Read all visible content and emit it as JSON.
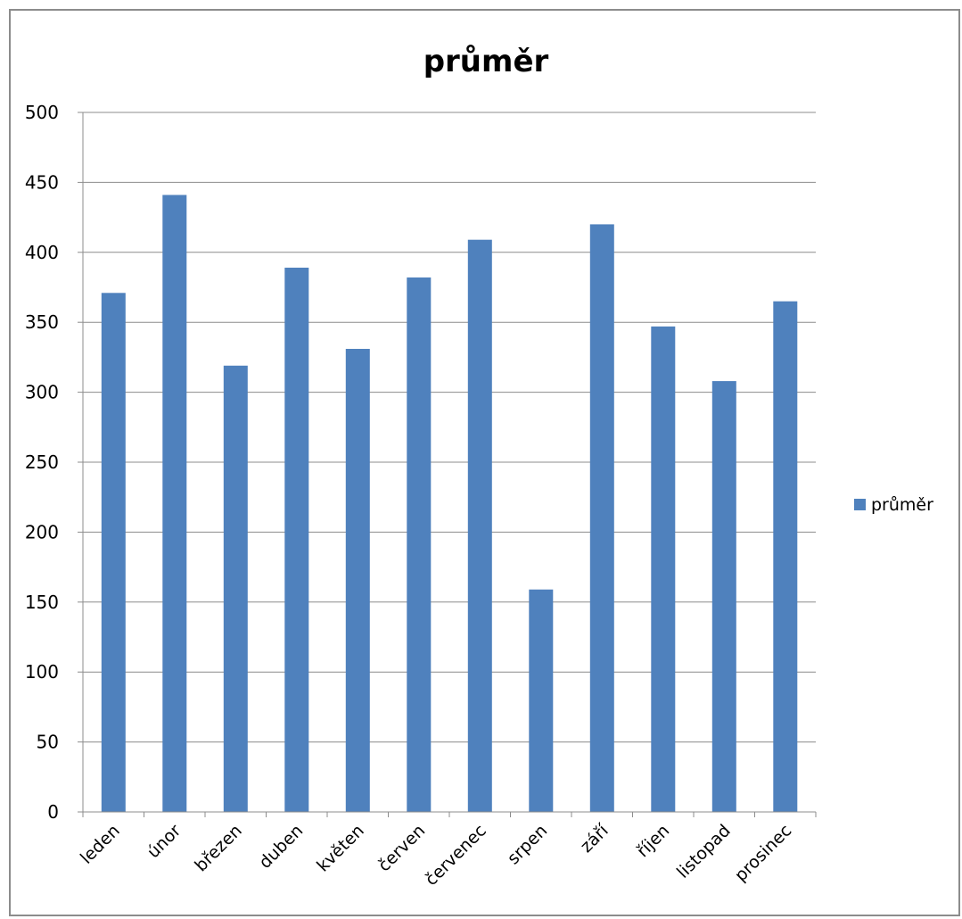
{
  "chart_data": {
    "type": "bar",
    "title": "průměr",
    "categories": [
      "leden",
      "únor",
      "březen",
      "duben",
      "květen",
      "červen",
      "červenec",
      "srpen",
      "září",
      "říjen",
      "listopad",
      "prosinec"
    ],
    "series": [
      {
        "name": "průměr",
        "color": "#4F81BD",
        "values": [
          371,
          441,
          319,
          389,
          331,
          382,
          409,
          159,
          420,
          347,
          308,
          365
        ]
      }
    ],
    "ylim": [
      0,
      500
    ],
    "yticks": [
      0,
      50,
      100,
      150,
      200,
      250,
      300,
      350,
      400,
      450,
      500
    ],
    "grid": true,
    "legend_position": "right",
    "gridline_color": "#8c8c8c",
    "axis_color": "#8c8c8c"
  }
}
